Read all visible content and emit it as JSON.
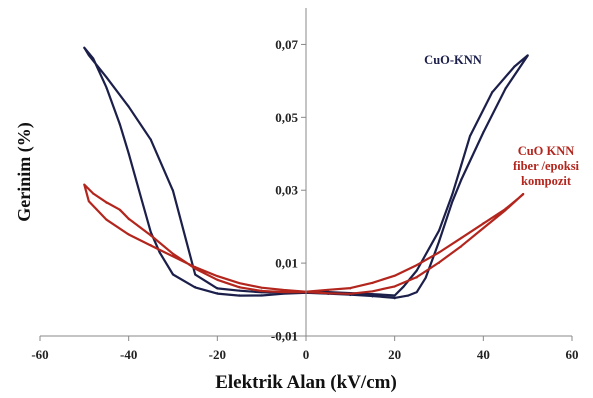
{
  "chart_data": {
    "type": "line",
    "xlabel": "Elektrik Alan (kV/cm)",
    "ylabel": "Gerinim (%)",
    "xlim": [
      -60,
      60
    ],
    "ylim": [
      -0.01,
      0.08
    ],
    "x_ticks": [
      "-60",
      "-40",
      "-20",
      "0",
      "20",
      "40",
      "60"
    ],
    "y_ticks": [
      "0,07",
      "0,05",
      "0,03",
      "0,01",
      "-0,01"
    ],
    "grid": false,
    "series": [
      {
        "name": "CuO-KNN",
        "color": "#1b1f4a",
        "x": [
          50,
          47,
          42,
          37,
          35,
          33,
          30,
          25,
          22,
          20,
          16,
          10,
          5,
          0,
          -5,
          -10,
          -15,
          -20,
          -25,
          -30,
          -35,
          -40,
          -45,
          -49,
          -50,
          -48,
          -45,
          -42,
          -40,
          -37,
          -35,
          -33,
          -30,
          -25,
          -20,
          -15,
          -10,
          -5,
          0,
          5,
          10,
          15,
          20,
          23,
          25,
          27,
          30,
          33,
          35,
          40,
          45,
          50
        ],
        "y": [
          0.067,
          0.064,
          0.057,
          0.045,
          0.037,
          0.029,
          0.019,
          0.008,
          0.0035,
          0.001,
          0.0013,
          0.0016,
          0.0019,
          0.002,
          0.0018,
          0.002,
          0.0025,
          0.0032,
          0.007,
          0.03,
          0.044,
          0.053,
          0.061,
          0.067,
          0.069,
          0.066,
          0.058,
          0.048,
          0.04,
          0.027,
          0.0185,
          0.013,
          0.007,
          0.0035,
          0.0018,
          0.0012,
          0.0012,
          0.0016,
          0.0018,
          0.0015,
          0.0012,
          0.0008,
          0.0003,
          0.001,
          0.002,
          0.006,
          0.016,
          0.027,
          0.033,
          0.046,
          0.058,
          0.067
        ]
      },
      {
        "name": "CuO KNN fiber /epoksi kompozit",
        "color": "#b3261e",
        "x": [
          49,
          45,
          40,
          35,
          30,
          25,
          20,
          15,
          10,
          5,
          0,
          -5,
          -10,
          -15,
          -20,
          -25,
          -30,
          -35,
          -40,
          -45,
          -49,
          -50,
          -48,
          -45,
          -42,
          -40,
          -35,
          -30,
          -25,
          -20,
          -15,
          -10,
          -5,
          0,
          5,
          10,
          15,
          20,
          25,
          30,
          35,
          40,
          45,
          49
        ],
        "y": [
          0.029,
          0.025,
          0.021,
          0.017,
          0.013,
          0.0095,
          0.0065,
          0.0045,
          0.003,
          0.0025,
          0.002,
          0.0025,
          0.0032,
          0.0045,
          0.0065,
          0.009,
          0.012,
          0.015,
          0.018,
          0.022,
          0.027,
          0.0315,
          0.029,
          0.0265,
          0.0245,
          0.022,
          0.0175,
          0.0125,
          0.0085,
          0.0055,
          0.0035,
          0.0025,
          0.0022,
          0.0022,
          0.0018,
          0.0016,
          0.0022,
          0.0035,
          0.006,
          0.01,
          0.0145,
          0.0195,
          0.0245,
          0.029
        ]
      }
    ],
    "labels": [
      {
        "lines": [
          "CuO-KNN"
        ],
        "color": "#1b1f4a"
      },
      {
        "lines": [
          "CuO KNN",
          "fiber /epoksi",
          "kompozit"
        ],
        "color": "#b3261e"
      }
    ]
  }
}
